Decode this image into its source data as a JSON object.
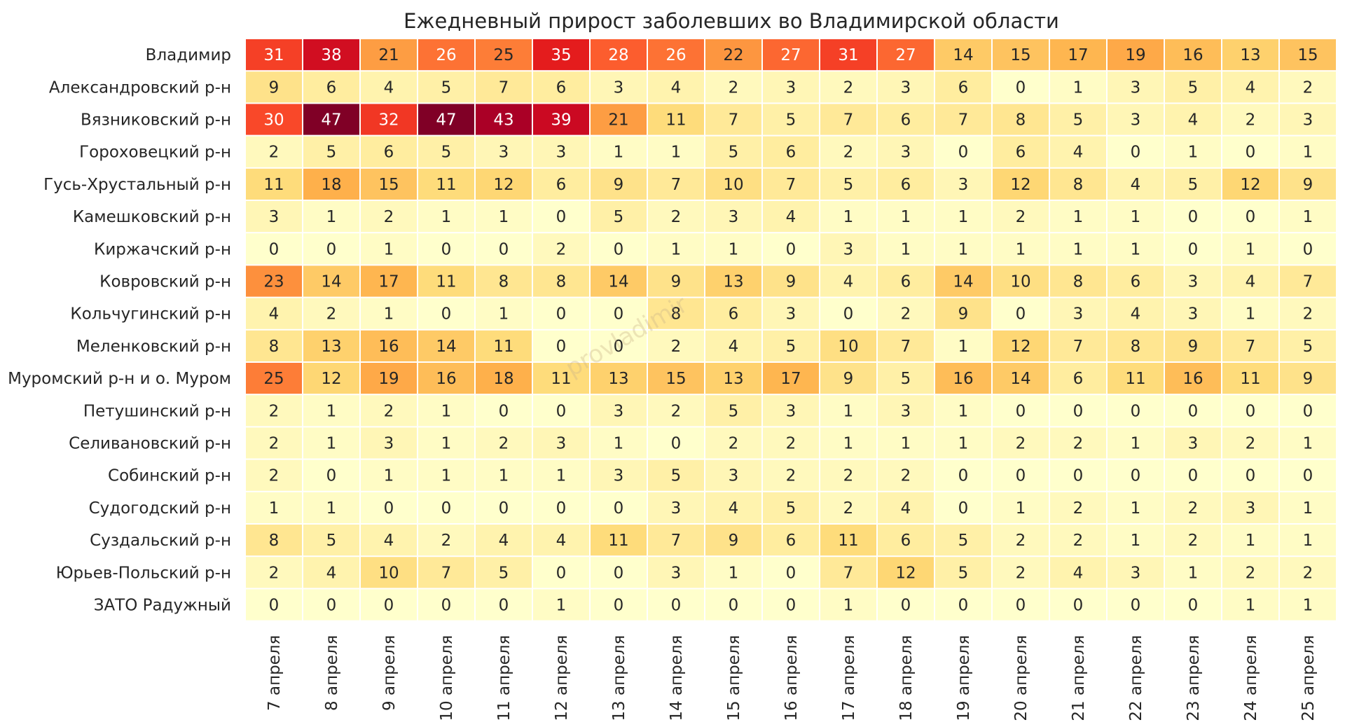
{
  "watermark": "provladimir",
  "chart_data": {
    "type": "heatmap",
    "title": "Ежедневный прирост заболевших во Владимирской области",
    "xlabel": "",
    "ylabel": "",
    "colormap": [
      "#ffffcc",
      "#ffeda0",
      "#fed976",
      "#feb24c",
      "#fd8d3c",
      "#fc4e2a",
      "#e31a1c",
      "#bd0026",
      "#800026"
    ],
    "value_range": [
      0,
      47
    ],
    "x": [
      "7 апреля",
      "8 апреля",
      "9 апреля",
      "10 апреля",
      "11 апреля",
      "12 апреля",
      "13 апреля",
      "14 апреля",
      "15 апреля",
      "16 апреля",
      "17 апреля",
      "18 апреля",
      "19 апреля",
      "20 апреля",
      "21 апреля",
      "22 апреля",
      "23 апреля",
      "24 апреля",
      "25 апреля"
    ],
    "y": [
      "Владимир",
      "Александровский р-н",
      "Вязниковский р-н",
      "Гороховецкий р-н",
      "Гусь-Хрустальный р-н",
      "Камешковский р-н",
      "Киржачский р-н",
      "Ковровский р-н",
      "Кольчугинский р-н",
      "Меленковский р-н",
      "Муромский р-н и о. Муром",
      "Петушинский р-н",
      "Селивановский р-н",
      "Собинский р-н",
      "Судогодский р-н",
      "Суздальский р-н",
      "Юрьев-Польский р-н",
      "ЗАТО Радужный"
    ],
    "values": [
      [
        31,
        38,
        21,
        26,
        25,
        35,
        28,
        26,
        22,
        27,
        31,
        27,
        14,
        15,
        17,
        19,
        16,
        13,
        15
      ],
      [
        9,
        6,
        4,
        5,
        7,
        6,
        3,
        4,
        2,
        3,
        2,
        3,
        6,
        0,
        1,
        3,
        5,
        4,
        2
      ],
      [
        30,
        47,
        32,
        47,
        43,
        39,
        21,
        11,
        7,
        5,
        7,
        6,
        7,
        8,
        5,
        3,
        4,
        2,
        3
      ],
      [
        2,
        5,
        6,
        5,
        3,
        3,
        1,
        1,
        5,
        6,
        2,
        3,
        0,
        6,
        4,
        0,
        1,
        0,
        1
      ],
      [
        11,
        18,
        15,
        11,
        12,
        6,
        9,
        7,
        10,
        7,
        5,
        6,
        3,
        12,
        8,
        4,
        5,
        12,
        9
      ],
      [
        3,
        1,
        2,
        1,
        1,
        0,
        5,
        2,
        3,
        4,
        1,
        1,
        1,
        2,
        1,
        1,
        0,
        0,
        1
      ],
      [
        0,
        0,
        1,
        0,
        0,
        2,
        0,
        1,
        1,
        0,
        3,
        1,
        1,
        1,
        1,
        1,
        0,
        1,
        0
      ],
      [
        23,
        14,
        17,
        11,
        8,
        8,
        14,
        9,
        13,
        9,
        4,
        6,
        14,
        10,
        8,
        6,
        3,
        4,
        7
      ],
      [
        4,
        2,
        1,
        0,
        1,
        0,
        0,
        8,
        6,
        3,
        0,
        2,
        9,
        0,
        3,
        4,
        3,
        1,
        2
      ],
      [
        8,
        13,
        16,
        14,
        11,
        0,
        0,
        2,
        4,
        5,
        10,
        7,
        1,
        12,
        7,
        8,
        9,
        7,
        5
      ],
      [
        25,
        12,
        19,
        16,
        18,
        11,
        13,
        15,
        13,
        17,
        9,
        5,
        16,
        14,
        6,
        11,
        16,
        11,
        9
      ],
      [
        2,
        1,
        2,
        1,
        0,
        0,
        3,
        2,
        5,
        3,
        1,
        3,
        1,
        0,
        0,
        0,
        0,
        0,
        0
      ],
      [
        2,
        1,
        3,
        1,
        2,
        3,
        1,
        0,
        2,
        2,
        1,
        1,
        1,
        2,
        2,
        1,
        3,
        2,
        1
      ],
      [
        2,
        0,
        1,
        1,
        1,
        1,
        3,
        5,
        3,
        2,
        2,
        2,
        0,
        0,
        0,
        0,
        0,
        0,
        0
      ],
      [
        1,
        1,
        0,
        0,
        0,
        0,
        0,
        3,
        4,
        5,
        2,
        4,
        0,
        1,
        2,
        1,
        2,
        3,
        1
      ],
      [
        8,
        5,
        4,
        2,
        4,
        4,
        11,
        7,
        9,
        6,
        11,
        6,
        5,
        2,
        2,
        1,
        2,
        1,
        1
      ],
      [
        2,
        4,
        10,
        7,
        5,
        0,
        0,
        3,
        1,
        0,
        7,
        12,
        5,
        2,
        4,
        3,
        1,
        2,
        2
      ],
      [
        0,
        0,
        0,
        0,
        0,
        1,
        0,
        0,
        0,
        0,
        1,
        0,
        0,
        0,
        0,
        0,
        0,
        1,
        1
      ]
    ],
    "grid": false,
    "legend": "none"
  }
}
